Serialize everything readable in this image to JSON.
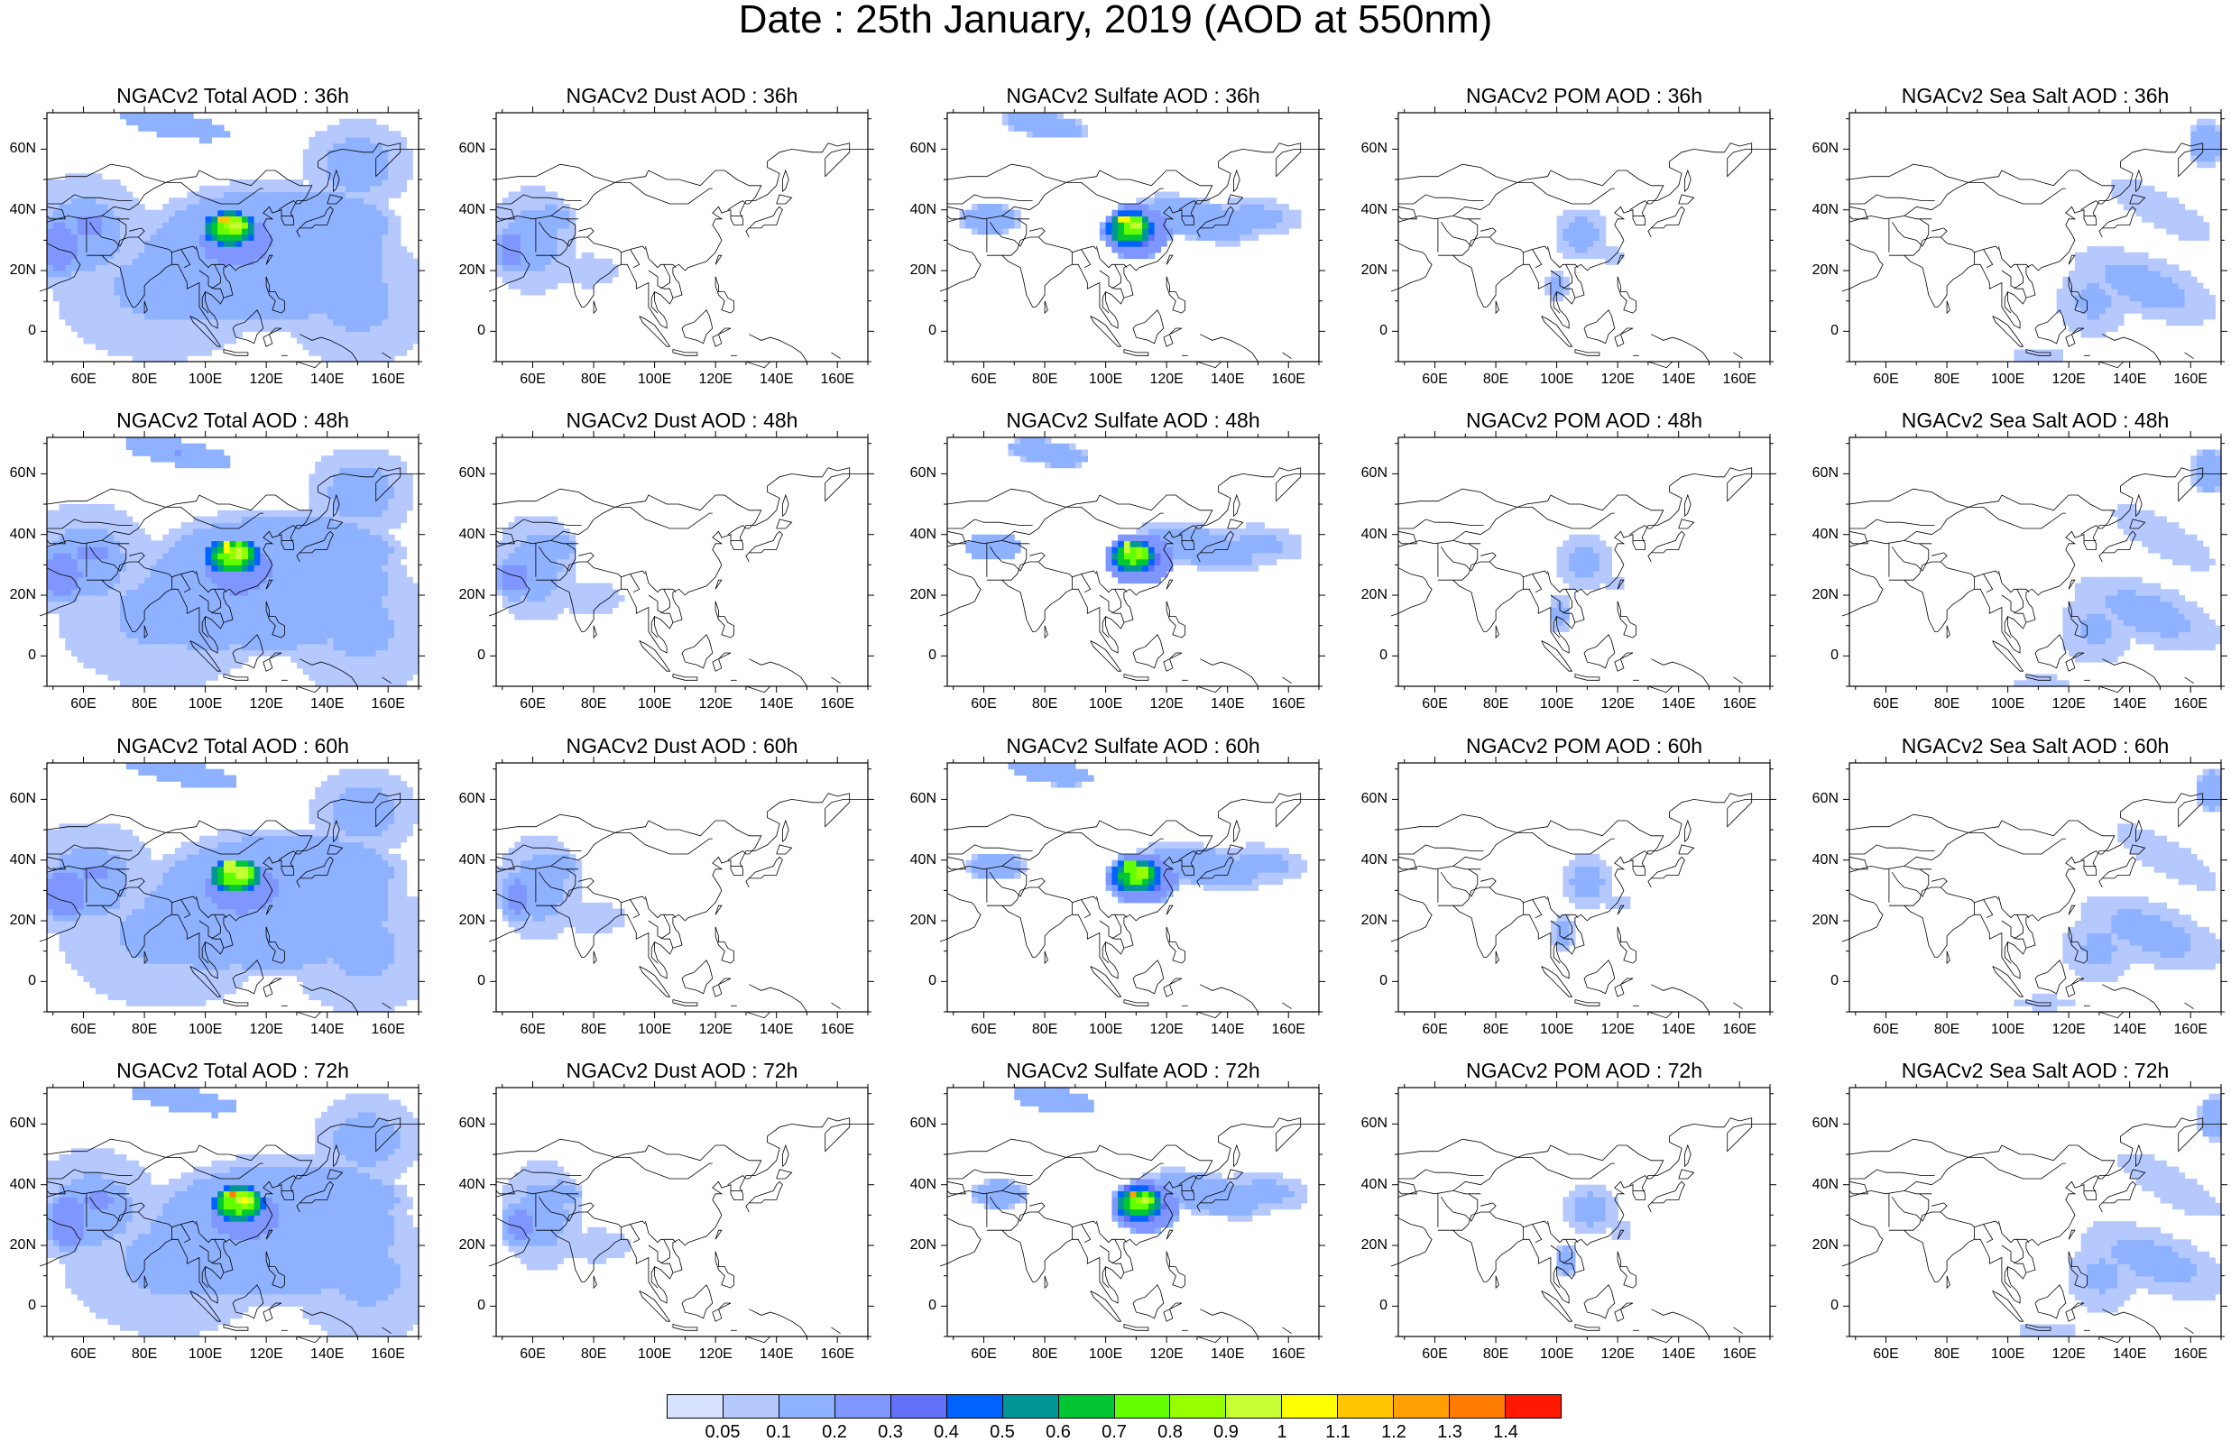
{
  "main_title": "Date : 25th January, 2019 (AOD at 550nm)",
  "axes": {
    "lon_labels": [
      "60E",
      "80E",
      "100E",
      "120E",
      "140E",
      "160E"
    ],
    "lat_labels": [
      "60N",
      "40N",
      "20N",
      "0"
    ]
  },
  "panels": [
    {
      "title": "NGACv2 Total AOD : 36h",
      "species": "total",
      "hour": 36
    },
    {
      "title": "NGACv2 Dust AOD : 36h",
      "species": "dust",
      "hour": 36
    },
    {
      "title": "NGACv2 Sulfate AOD : 36h",
      "species": "sulfate",
      "hour": 36
    },
    {
      "title": "NGACv2 POM AOD : 36h",
      "species": "pom",
      "hour": 36
    },
    {
      "title": "NGACv2 Sea Salt AOD : 36h",
      "species": "seasalt",
      "hour": 36
    },
    {
      "title": "NGACv2 Total AOD : 48h",
      "species": "total",
      "hour": 48
    },
    {
      "title": "NGACv2 Dust AOD : 48h",
      "species": "dust",
      "hour": 48
    },
    {
      "title": "NGACv2 Sulfate AOD : 48h",
      "species": "sulfate",
      "hour": 48
    },
    {
      "title": "NGACv2 POM AOD : 48h",
      "species": "pom",
      "hour": 48
    },
    {
      "title": "NGACv2 Sea Salt AOD : 48h",
      "species": "seasalt",
      "hour": 48
    },
    {
      "title": "NGACv2 Total AOD : 60h",
      "species": "total",
      "hour": 60
    },
    {
      "title": "NGACv2 Dust AOD : 60h",
      "species": "dust",
      "hour": 60
    },
    {
      "title": "NGACv2 Sulfate AOD : 60h",
      "species": "sulfate",
      "hour": 60
    },
    {
      "title": "NGACv2 POM AOD : 60h",
      "species": "pom",
      "hour": 60
    },
    {
      "title": "NGACv2 Sea Salt AOD : 60h",
      "species": "seasalt",
      "hour": 60
    },
    {
      "title": "NGACv2 Total AOD : 72h",
      "species": "total",
      "hour": 72
    },
    {
      "title": "NGACv2 Dust AOD : 72h",
      "species": "dust",
      "hour": 72
    },
    {
      "title": "NGACv2 Sulfate AOD : 72h",
      "species": "sulfate",
      "hour": 72
    },
    {
      "title": "NGACv2 POM AOD : 72h",
      "species": "pom",
      "hour": 72
    },
    {
      "title": "NGACv2 Sea Salt  AOD : 72h",
      "species": "seasalt",
      "hour": 72
    }
  ],
  "colorbar": {
    "labels": [
      "0.05",
      "0.1",
      "0.2",
      "0.3",
      "0.4",
      "0.5",
      "0.6",
      "0.7",
      "0.8",
      "0.9",
      "1",
      "1.1",
      "1.2",
      "1.3",
      "1.4"
    ],
    "colors": [
      "#ffffff",
      "#d6e2ff",
      "#b5c9ff",
      "#8eb2ff",
      "#7f96ff",
      "#6370f8",
      "#0063ff",
      "#009696",
      "#00c633",
      "#63ff00",
      "#96ff00",
      "#c6ff33",
      "#ffff00",
      "#ffc600",
      "#ffa000",
      "#ff7c00",
      "#ff1900"
    ]
  }
}
